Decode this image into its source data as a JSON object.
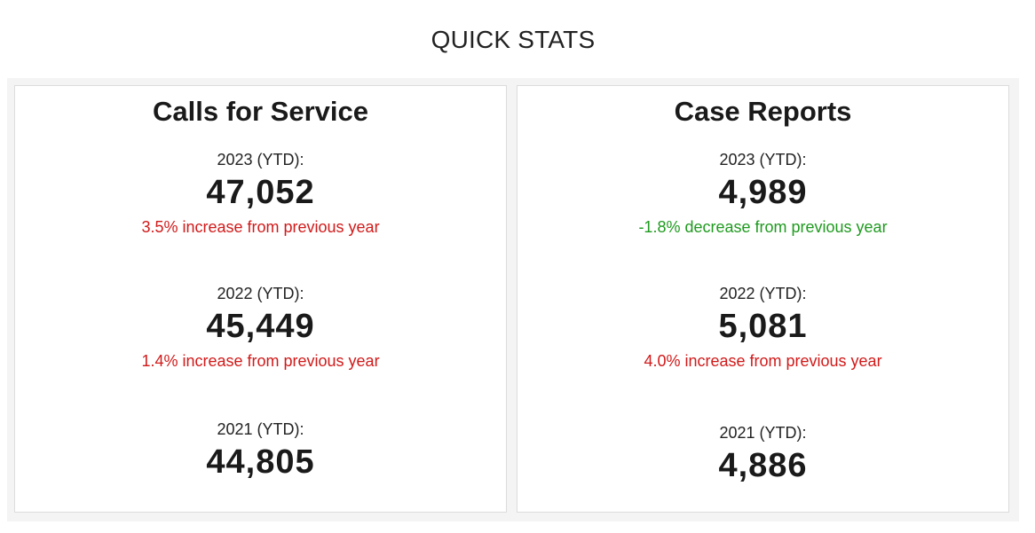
{
  "page": {
    "title": "QUICK STATS"
  },
  "colors": {
    "increase": "#d11a1a",
    "decrease": "#1f9a1f",
    "panel_background": "#f4f4f4",
    "card_border": "#dcdcdc"
  },
  "cards": [
    {
      "title": "Calls for Service",
      "stats": [
        {
          "label": "2023 (YTD):",
          "value": "47,052",
          "change": "3.5% increase from previous year",
          "direction": "increase"
        },
        {
          "label": "2022 (YTD):",
          "value": "45,449",
          "change": "1.4% increase from previous year",
          "direction": "increase"
        },
        {
          "label": "2021 (YTD):",
          "value": "44,805"
        }
      ]
    },
    {
      "title": "Case Reports",
      "stats": [
        {
          "label": "2023 (YTD):",
          "value": "4,989",
          "change": "-1.8% decrease from previous year",
          "direction": "decrease"
        },
        {
          "label": "2022 (YTD):",
          "value": "5,081",
          "change": "4.0% increase from previous year",
          "direction": "increase"
        },
        {
          "label": "2021 (YTD):",
          "value": "4,886"
        }
      ]
    }
  ]
}
